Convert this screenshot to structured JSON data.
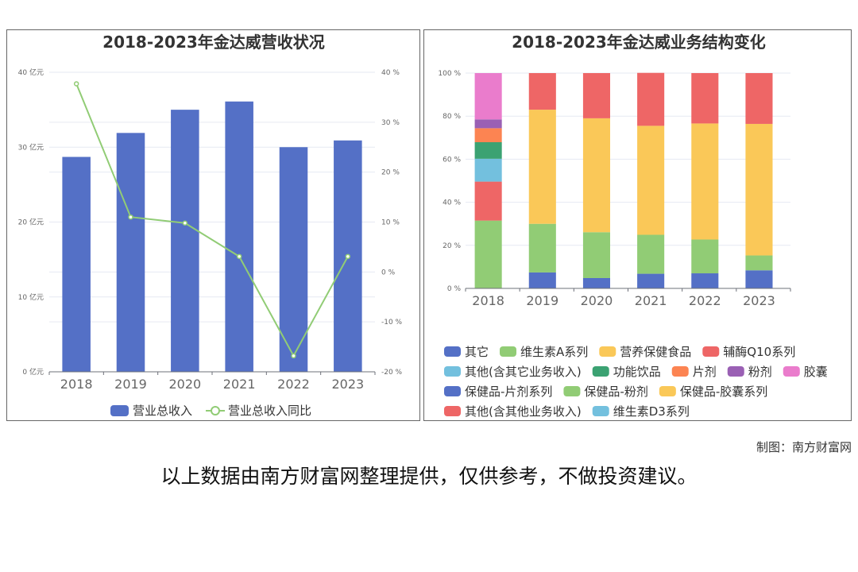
{
  "chart_data": [
    {
      "type": "bar+line",
      "title": "2018-2023年金达威营收状况",
      "categories": [
        "2018",
        "2019",
        "2020",
        "2021",
        "2022",
        "2023"
      ],
      "series": [
        {
          "name": "营业总收入",
          "type": "bar",
          "axis": "left",
          "color": "#5470c6",
          "values": [
            28.7,
            31.9,
            35.0,
            36.1,
            30.0,
            30.9
          ]
        },
        {
          "name": "营业总收入同比",
          "type": "line",
          "axis": "right",
          "color": "#91cc75",
          "values": [
            37.7,
            11.0,
            9.8,
            3.1,
            -16.8,
            3.1
          ]
        }
      ],
      "y_left": {
        "ylim": [
          0,
          40
        ],
        "ticks": [
          "0 亿元",
          "10 亿元",
          "20 亿元",
          "30 亿元",
          "40 亿元"
        ]
      },
      "y_right": {
        "ylim": [
          -20,
          40
        ],
        "ticks": [
          "-20 %",
          "-10 %",
          "0 %",
          "10 %",
          "20 %",
          "30 %",
          "40 %"
        ]
      },
      "grid": true,
      "legend": "bottom"
    },
    {
      "type": "stacked-bar",
      "title": "2018-2023年金达威业务结构变化",
      "categories": [
        "2018",
        "2019",
        "2020",
        "2021",
        "2022",
        "2023"
      ],
      "ylim": [
        0,
        100
      ],
      "yticks": [
        "0 %",
        "20 %",
        "40 %",
        "60 %",
        "80 %",
        "100 %"
      ],
      "grid": true,
      "legend": "bottom",
      "series": [
        {
          "name": "其它",
          "color": "#5470c6",
          "values": [
            0,
            0,
            0,
            0,
            0,
            0
          ]
        },
        {
          "name": "维生素A系列",
          "color": "#91cc75",
          "values": [
            31.5,
            0,
            0,
            0,
            0,
            0
          ]
        },
        {
          "name": "营养保健食品",
          "color": "#fac858",
          "values": [
            0,
            0,
            0,
            0,
            0,
            0
          ]
        },
        {
          "name": "辅酶Q10系列",
          "color": "#ee6666",
          "values": [
            18.1,
            0,
            0,
            0,
            0,
            0
          ]
        },
        {
          "name": "其他(含其它业务收入)",
          "color": "#73c0de",
          "values": [
            10.6,
            0,
            0,
            0,
            0,
            0
          ]
        },
        {
          "name": "功能饮品",
          "color": "#3ba272",
          "values": [
            7.7,
            0,
            0,
            0,
            0,
            0
          ]
        },
        {
          "name": "片剂",
          "color": "#fc8452",
          "values": [
            6.5,
            0,
            0,
            0,
            0,
            0
          ]
        },
        {
          "name": "粉剂",
          "color": "#9a60b4",
          "values": [
            4.1,
            0,
            0,
            0,
            0,
            0
          ]
        },
        {
          "name": "胶囊",
          "color": "#ea7ccc",
          "values": [
            21.5,
            0,
            0,
            0,
            0,
            0
          ]
        },
        {
          "name": "保健品-片剂系列",
          "color": "#5470c6",
          "values": [
            0,
            7.4,
            4.8,
            6.8,
            7.0,
            8.4
          ]
        },
        {
          "name": "保健品-粉剂",
          "color": "#91cc75",
          "values": [
            0,
            22.6,
            21.3,
            18.1,
            15.7,
            6.9
          ]
        },
        {
          "name": "保健品-胶囊系列",
          "color": "#fac858",
          "values": [
            0,
            53.0,
            52.9,
            50.6,
            53.9,
            61.1
          ]
        },
        {
          "name": "其他(含其他业务收入)",
          "color": "#ee6666",
          "values": [
            0,
            17.0,
            21.0,
            24.6,
            23.4,
            23.6
          ]
        },
        {
          "name": "维生素D3系列",
          "color": "#73c0de",
          "values": [
            0,
            0,
            0,
            0,
            0,
            0
          ]
        }
      ]
    }
  ],
  "footer": {
    "credit": "制图：南方财富网",
    "disclaimer": "以上数据由南方财富网整理提供，仅供参考，不做投资建议。"
  }
}
